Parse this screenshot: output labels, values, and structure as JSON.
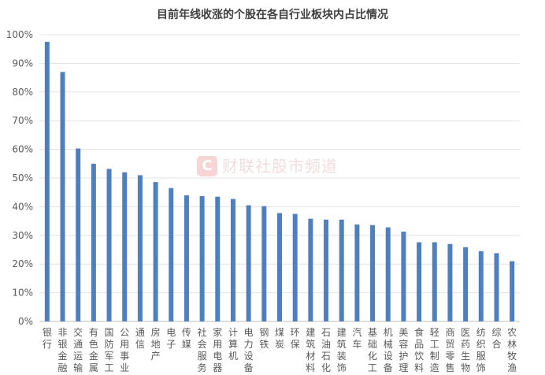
{
  "chart_data": {
    "type": "bar",
    "title": "目前年线收涨的个股在各自行业板块内占比情况",
    "xlabel": "",
    "ylabel": "",
    "ylim": [
      0,
      100
    ],
    "yticks": [
      "0%",
      "10%",
      "20%",
      "30%",
      "40%",
      "50%",
      "60%",
      "70%",
      "80%",
      "90%",
      "100%"
    ],
    "grid": true,
    "legend": "none",
    "bar_color": "#4f7fbf",
    "categories": [
      "银行",
      "非银金融",
      "交通运输",
      "有色金属",
      "国防军工",
      "公用事业",
      "通信",
      "房地产",
      "电子",
      "传媒",
      "社会服务",
      "家用电器",
      "计算机",
      "电力设备",
      "钢铁",
      "煤炭",
      "环保",
      "建筑材料",
      "石油石化",
      "建筑装饰",
      "汽车",
      "基础化工",
      "机械设备",
      "美容护理",
      "食品饮料",
      "轻工制造",
      "商贸零售",
      "医药生物",
      "纺织服饰",
      "综合",
      "农林牧渔"
    ],
    "values": [
      97.5,
      87,
      60.3,
      55,
      53.2,
      52,
      51,
      48.6,
      46.5,
      44,
      43.7,
      43.5,
      42.7,
      40.5,
      40.2,
      37.8,
      37.5,
      35.8,
      35.5,
      35.5,
      33.8,
      33.6,
      32.8,
      31.3,
      27.6,
      27.6,
      27,
      25.9,
      24.5,
      23.8,
      21
    ]
  },
  "watermark": {
    "logo_letter": "C",
    "text": "财联社股市频道"
  }
}
